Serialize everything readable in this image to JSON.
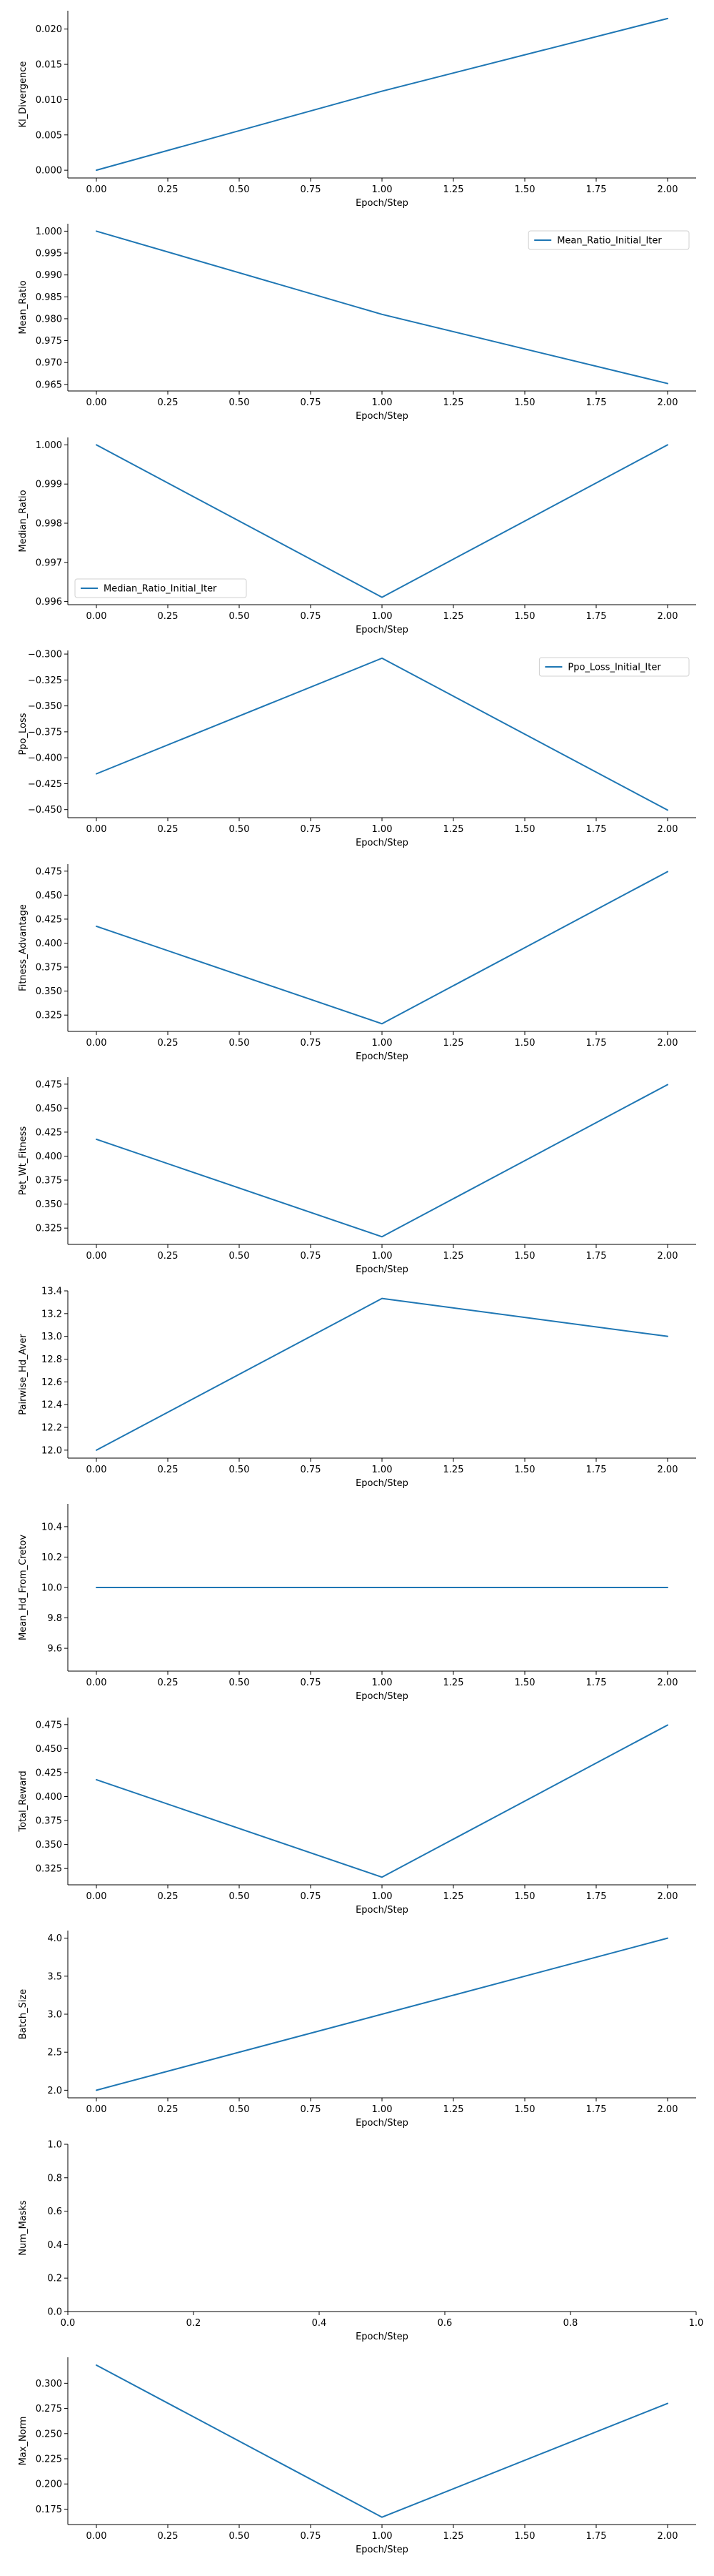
{
  "chart_data": [
    {
      "type": "line",
      "title": "",
      "xlabel": "Epoch/Step",
      "ylabel": "Kl_Divergence",
      "xlim": [
        -0.1,
        2.1
      ],
      "ylim": [
        -0.0011,
        0.0226
      ],
      "xticks": [
        0.0,
        0.25,
        0.5,
        0.75,
        1.0,
        1.25,
        1.5,
        1.75,
        2.0
      ],
      "xtick_labels": [
        "0.00",
        "0.25",
        "0.50",
        "0.75",
        "1.00",
        "1.25",
        "1.50",
        "1.75",
        "2.00"
      ],
      "yticks": [
        0.0,
        0.005,
        0.01,
        0.015,
        0.02
      ],
      "ytick_labels": [
        "0.000",
        "0.005",
        "0.010",
        "0.015",
        "0.020"
      ],
      "grid": false,
      "legend": null,
      "series": [
        {
          "name": "",
          "color": "#1f77b4",
          "x": [
            0,
            1,
            2
          ],
          "y": [
            0.0,
            0.0112,
            0.0215
          ]
        }
      ]
    },
    {
      "type": "line",
      "title": "",
      "xlabel": "Epoch/Step",
      "ylabel": "Mean_Ratio",
      "xlim": [
        -0.1,
        2.1
      ],
      "ylim": [
        0.9635,
        1.0017
      ],
      "xticks": [
        0.0,
        0.25,
        0.5,
        0.75,
        1.0,
        1.25,
        1.5,
        1.75,
        2.0
      ],
      "xtick_labels": [
        "0.00",
        "0.25",
        "0.50",
        "0.75",
        "1.00",
        "1.25",
        "1.50",
        "1.75",
        "2.00"
      ],
      "yticks": [
        0.965,
        0.97,
        0.975,
        0.98,
        0.985,
        0.99,
        0.995,
        1.0
      ],
      "ytick_labels": [
        "0.965",
        "0.970",
        "0.975",
        "0.980",
        "0.985",
        "0.990",
        "0.995",
        "1.000"
      ],
      "grid": false,
      "legend": "upper right",
      "series": [
        {
          "name": "Mean_Ratio_Initial_Iter",
          "color": "#1f77b4",
          "x": [
            0,
            1,
            2
          ],
          "y": [
            1.0,
            0.981,
            0.9652
          ]
        }
      ]
    },
    {
      "type": "line",
      "title": "",
      "xlabel": "Epoch/Step",
      "ylabel": "Median_Ratio",
      "xlim": [
        -0.1,
        2.1
      ],
      "ylim": [
        0.99592,
        1.00019
      ],
      "xticks": [
        0.0,
        0.25,
        0.5,
        0.75,
        1.0,
        1.25,
        1.5,
        1.75,
        2.0
      ],
      "xtick_labels": [
        "0.00",
        "0.25",
        "0.50",
        "0.75",
        "1.00",
        "1.25",
        "1.50",
        "1.75",
        "2.00"
      ],
      "yticks": [
        0.996,
        0.997,
        0.998,
        0.999,
        1.0
      ],
      "ytick_labels": [
        "0.996",
        "0.997",
        "0.998",
        "0.999",
        "1.000"
      ],
      "grid": false,
      "legend": "lower left",
      "series": [
        {
          "name": "Median_Ratio_Initial_Iter",
          "color": "#1f77b4",
          "x": [
            0,
            1,
            2
          ],
          "y": [
            1.0,
            0.99611,
            1.0
          ]
        }
      ]
    },
    {
      "type": "line",
      "title": "",
      "xlabel": "Epoch/Step",
      "ylabel": "Ppo_Loss",
      "xlim": [
        -0.1,
        2.1
      ],
      "ylim": [
        -0.4578,
        -0.2965
      ],
      "xticks": [
        0.0,
        0.25,
        0.5,
        0.75,
        1.0,
        1.25,
        1.5,
        1.75,
        2.0
      ],
      "xtick_labels": [
        "0.00",
        "0.25",
        "0.50",
        "0.75",
        "1.00",
        "1.25",
        "1.50",
        "1.75",
        "2.00"
      ],
      "yticks": [
        -0.45,
        -0.425,
        -0.4,
        -0.375,
        -0.35,
        -0.325,
        -0.3
      ],
      "ytick_labels": [
        "−0.450",
        "−0.425",
        "−0.400",
        "−0.375",
        "−0.350",
        "−0.325",
        "−0.300"
      ],
      "grid": false,
      "legend": "upper right",
      "series": [
        {
          "name": "Ppo_Loss_Initial_Iter",
          "color": "#1f77b4",
          "x": [
            0,
            1,
            2
          ],
          "y": [
            -0.4155,
            -0.304,
            -0.4505
          ]
        }
      ]
    },
    {
      "type": "line",
      "title": "",
      "xlabel": "Epoch/Step",
      "ylabel": "Fitness_Advantage",
      "xlim": [
        -0.1,
        2.1
      ],
      "ylim": [
        0.308,
        0.4823
      ],
      "xticks": [
        0.0,
        0.25,
        0.5,
        0.75,
        1.0,
        1.25,
        1.5,
        1.75,
        2.0
      ],
      "xtick_labels": [
        "0.00",
        "0.25",
        "0.50",
        "0.75",
        "1.00",
        "1.25",
        "1.50",
        "1.75",
        "2.00"
      ],
      "yticks": [
        0.325,
        0.35,
        0.375,
        0.4,
        0.425,
        0.45,
        0.475
      ],
      "ytick_labels": [
        "0.325",
        "0.350",
        "0.375",
        "0.400",
        "0.425",
        "0.450",
        "0.475"
      ],
      "grid": false,
      "legend": null,
      "series": [
        {
          "name": "",
          "color": "#1f77b4",
          "x": [
            0,
            1,
            2
          ],
          "y": [
            0.4175,
            0.316,
            0.4745
          ]
        }
      ]
    },
    {
      "type": "line",
      "title": "",
      "xlabel": "Epoch/Step",
      "ylabel": "Pet_Wt_Fitness",
      "xlim": [
        -0.1,
        2.1
      ],
      "ylim": [
        0.308,
        0.4823
      ],
      "xticks": [
        0.0,
        0.25,
        0.5,
        0.75,
        1.0,
        1.25,
        1.5,
        1.75,
        2.0
      ],
      "xtick_labels": [
        "0.00",
        "0.25",
        "0.50",
        "0.75",
        "1.00",
        "1.25",
        "1.50",
        "1.75",
        "2.00"
      ],
      "yticks": [
        0.325,
        0.35,
        0.375,
        0.4,
        0.425,
        0.45,
        0.475
      ],
      "ytick_labels": [
        "0.325",
        "0.350",
        "0.375",
        "0.400",
        "0.425",
        "0.450",
        "0.475"
      ],
      "grid": false,
      "legend": null,
      "series": [
        {
          "name": "",
          "color": "#1f77b4",
          "x": [
            0,
            1,
            2
          ],
          "y": [
            0.4175,
            0.316,
            0.4745
          ]
        }
      ]
    },
    {
      "type": "line",
      "title": "",
      "xlabel": "Epoch/Step",
      "ylabel": "Pairwise_Hd_Aver",
      "xlim": [
        -0.1,
        2.1
      ],
      "ylim": [
        11.93,
        13.4
      ],
      "xticks": [
        0.0,
        0.25,
        0.5,
        0.75,
        1.0,
        1.25,
        1.5,
        1.75,
        2.0
      ],
      "xtick_labels": [
        "0.00",
        "0.25",
        "0.50",
        "0.75",
        "1.00",
        "1.25",
        "1.50",
        "1.75",
        "2.00"
      ],
      "yticks": [
        12.0,
        12.2,
        12.4,
        12.6,
        12.8,
        13.0,
        13.2,
        13.4
      ],
      "ytick_labels": [
        "12.0",
        "12.2",
        "12.4",
        "12.6",
        "12.8",
        "13.0",
        "13.2",
        "13.4"
      ],
      "grid": false,
      "legend": null,
      "series": [
        {
          "name": "",
          "color": "#1f77b4",
          "x": [
            0,
            1,
            2
          ],
          "y": [
            12.0,
            13.333,
            13.0
          ]
        }
      ]
    },
    {
      "type": "line",
      "title": "",
      "xlabel": "Epoch/Step",
      "ylabel": "Mean_Hd_From_Cretov",
      "xlim": [
        -0.1,
        2.1
      ],
      "ylim": [
        9.45,
        10.55
      ],
      "xticks": [
        0.0,
        0.25,
        0.5,
        0.75,
        1.0,
        1.25,
        1.5,
        1.75,
        2.0
      ],
      "xtick_labels": [
        "0.00",
        "0.25",
        "0.50",
        "0.75",
        "1.00",
        "1.25",
        "1.50",
        "1.75",
        "2.00"
      ],
      "yticks": [
        9.6,
        9.8,
        10.0,
        10.2,
        10.4
      ],
      "ytick_labels": [
        "9.6",
        "9.8",
        "10.0",
        "10.2",
        "10.4"
      ],
      "grid": false,
      "legend": null,
      "series": [
        {
          "name": "",
          "color": "#1f77b4",
          "x": [
            0,
            1,
            2
          ],
          "y": [
            10.0,
            10.0,
            10.0
          ]
        }
      ]
    },
    {
      "type": "line",
      "title": "",
      "xlabel": "Epoch/Step",
      "ylabel": "Total_Reward",
      "xlim": [
        -0.1,
        2.1
      ],
      "ylim": [
        0.308,
        0.4823
      ],
      "xticks": [
        0.0,
        0.25,
        0.5,
        0.75,
        1.0,
        1.25,
        1.5,
        1.75,
        2.0
      ],
      "xtick_labels": [
        "0.00",
        "0.25",
        "0.50",
        "0.75",
        "1.00",
        "1.25",
        "1.50",
        "1.75",
        "2.00"
      ],
      "yticks": [
        0.325,
        0.35,
        0.375,
        0.4,
        0.425,
        0.45,
        0.475
      ],
      "ytick_labels": [
        "0.325",
        "0.350",
        "0.375",
        "0.400",
        "0.425",
        "0.450",
        "0.475"
      ],
      "grid": false,
      "legend": null,
      "series": [
        {
          "name": "",
          "color": "#1f77b4",
          "x": [
            0,
            1,
            2
          ],
          "y": [
            0.4175,
            0.316,
            0.4745
          ]
        }
      ]
    },
    {
      "type": "line",
      "title": "",
      "xlabel": "Epoch/Step",
      "ylabel": "Batch_Size",
      "xlim": [
        -0.1,
        2.1
      ],
      "ylim": [
        1.9,
        4.1
      ],
      "xticks": [
        0.0,
        0.25,
        0.5,
        0.75,
        1.0,
        1.25,
        1.5,
        1.75,
        2.0
      ],
      "xtick_labels": [
        "0.00",
        "0.25",
        "0.50",
        "0.75",
        "1.00",
        "1.25",
        "1.50",
        "1.75",
        "2.00"
      ],
      "yticks": [
        2.0,
        2.5,
        3.0,
        3.5,
        4.0
      ],
      "ytick_labels": [
        "2.0",
        "2.5",
        "3.0",
        "3.5",
        "4.0"
      ],
      "grid": false,
      "legend": null,
      "series": [
        {
          "name": "",
          "color": "#1f77b4",
          "x": [
            0,
            1,
            2
          ],
          "y": [
            2.0,
            3.0,
            4.0
          ]
        }
      ]
    },
    {
      "type": "line",
      "title": "",
      "xlabel": "Epoch/Step",
      "ylabel": "Num_Masks",
      "xlim": [
        0.0,
        1.0
      ],
      "ylim": [
        0.0,
        1.0
      ],
      "xticks": [
        0.0,
        0.2,
        0.4,
        0.6,
        0.8,
        1.0
      ],
      "xtick_labels": [
        "0.0",
        "0.2",
        "0.4",
        "0.6",
        "0.8",
        "1.0"
      ],
      "yticks": [
        0.0,
        0.2,
        0.4,
        0.6,
        0.8,
        1.0
      ],
      "ytick_labels": [
        "0.0",
        "0.2",
        "0.4",
        "0.6",
        "0.8",
        "1.0"
      ],
      "grid": false,
      "legend": null,
      "series": []
    },
    {
      "type": "line",
      "title": "",
      "xlabel": "Epoch/Step",
      "ylabel": "Max_Norm",
      "xlim": [
        -0.1,
        2.1
      ],
      "ylim": [
        0.1597,
        0.3258
      ],
      "xticks": [
        0.0,
        0.25,
        0.5,
        0.75,
        1.0,
        1.25,
        1.5,
        1.75,
        2.0
      ],
      "xtick_labels": [
        "0.00",
        "0.25",
        "0.50",
        "0.75",
        "1.00",
        "1.25",
        "1.50",
        "1.75",
        "2.00"
      ],
      "yticks": [
        0.175,
        0.2,
        0.225,
        0.25,
        0.275,
        0.3
      ],
      "ytick_labels": [
        "0.175",
        "0.200",
        "0.225",
        "0.250",
        "0.275",
        "0.300"
      ],
      "grid": false,
      "legend": null,
      "series": [
        {
          "name": "",
          "color": "#1f77b4",
          "x": [
            0,
            1,
            2
          ],
          "y": [
            0.318,
            0.167,
            0.28
          ]
        }
      ]
    }
  ]
}
